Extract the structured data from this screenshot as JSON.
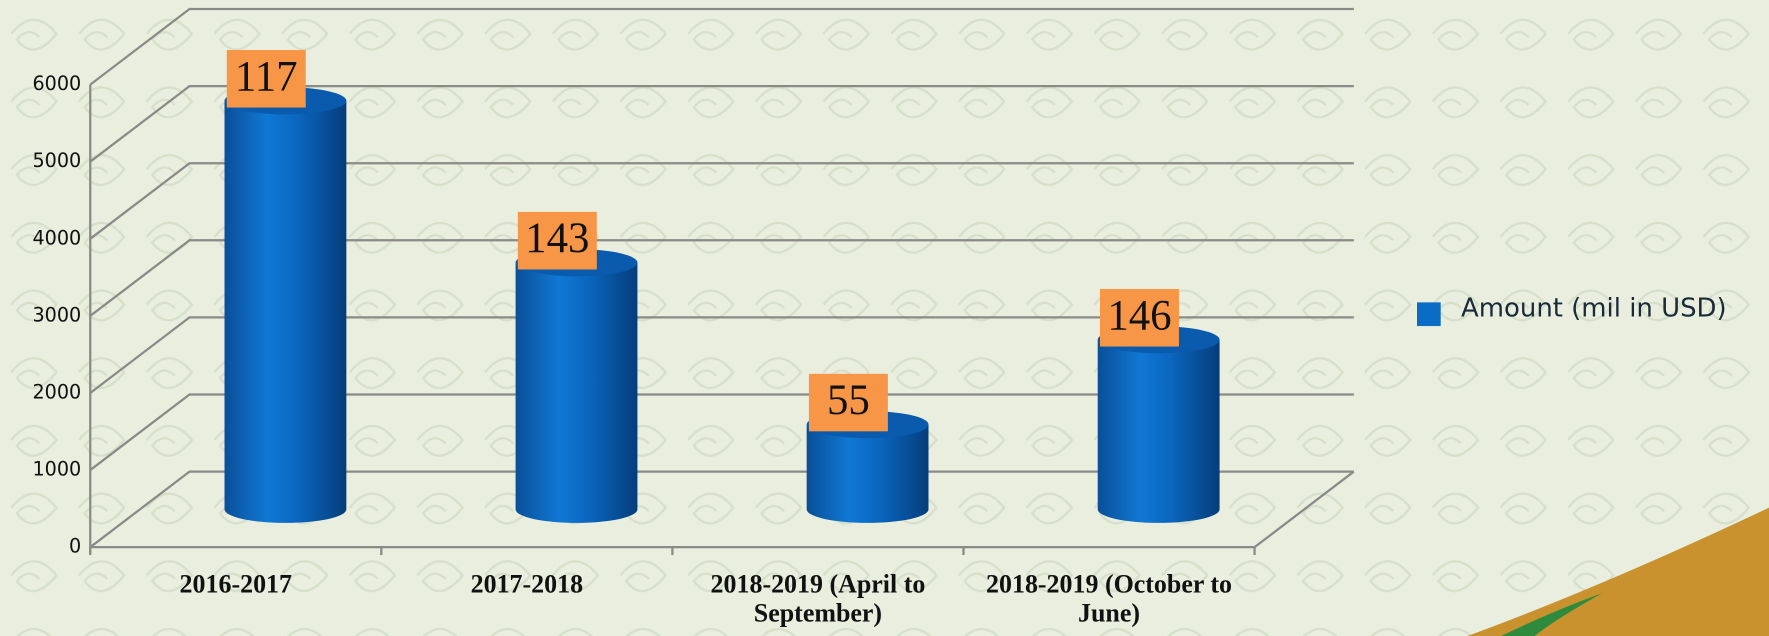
{
  "chart_data": {
    "type": "bar3d",
    "categories": [
      "2016-2017",
      "2017-2018",
      "2018-2019 (April to September)",
      "2018-2019 (October to  June)"
    ],
    "series": [
      {
        "name": "Amount (mil in USD)",
        "color": "#0a6cc4",
        "values": [
          5300,
          3200,
          1100,
          2200
        ]
      }
    ],
    "bar_labels": [
      117,
      143,
      55,
      146
    ],
    "ylim": [
      0,
      6000
    ],
    "yticks": [
      0,
      1000,
      2000,
      3000,
      4000,
      5000,
      6000
    ],
    "grid": true,
    "legend": "right"
  }
}
